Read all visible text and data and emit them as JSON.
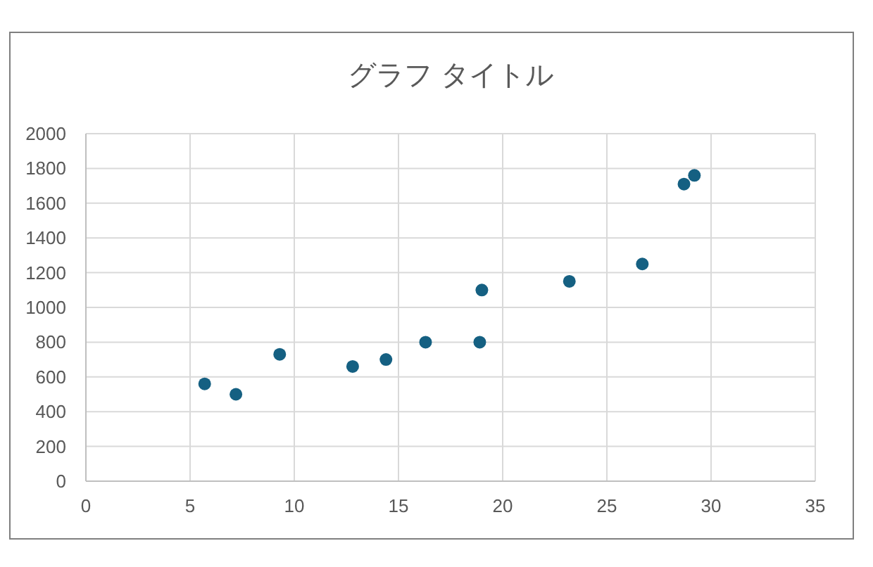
{
  "chart_data": {
    "type": "scatter",
    "title": "グラフ タイトル",
    "x": [
      5.7,
      7.2,
      9.3,
      12.8,
      14.4,
      16.3,
      18.9,
      19.0,
      23.2,
      26.7,
      28.7,
      29.2
    ],
    "series": [
      {
        "color": "#156082",
        "values": [
          560,
          500,
          730,
          660,
          700,
          800,
          800,
          1100,
          1150,
          1250,
          1710,
          1760
        ]
      }
    ],
    "xlim": [
      0,
      35
    ],
    "xticks": [
      0,
      5,
      10,
      15,
      20,
      25,
      30,
      35
    ],
    "ylim": [
      0,
      2000
    ],
    "yticks": [
      0,
      200,
      400,
      600,
      800,
      1000,
      1200,
      1400,
      1600,
      1800,
      2000
    ],
    "grid": true,
    "marker": "circle"
  }
}
